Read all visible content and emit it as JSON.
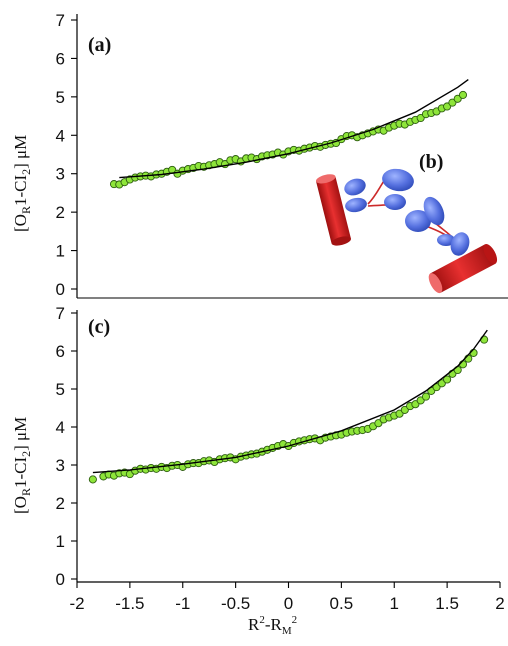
{
  "chart_data": [
    {
      "panel": "(a)",
      "type": "scatter",
      "ylabel": "[O_R1-CI_2] μM",
      "xlim": [
        -2,
        2
      ],
      "ylim": [
        0,
        7
      ],
      "yticks": [
        0,
        1,
        2,
        3,
        4,
        5,
        6,
        7
      ],
      "inset_label": "(b)",
      "series": [
        {
          "type": "scatter",
          "x": [
            -1.65,
            -1.6,
            -1.55,
            -1.5,
            -1.45,
            -1.4,
            -1.35,
            -1.3,
            -1.25,
            -1.2,
            -1.15,
            -1.1,
            -1.05,
            -1.0,
            -0.95,
            -0.9,
            -0.85,
            -0.8,
            -0.75,
            -0.7,
            -0.65,
            -0.6,
            -0.55,
            -0.5,
            -0.45,
            -0.4,
            -0.35,
            -0.3,
            -0.25,
            -0.2,
            -0.15,
            -0.1,
            -0.05,
            0.0,
            0.05,
            0.1,
            0.15,
            0.2,
            0.25,
            0.3,
            0.35,
            0.4,
            0.45,
            0.5,
            0.55,
            0.6,
            0.65,
            0.7,
            0.75,
            0.8,
            0.85,
            0.9,
            0.95,
            1.0,
            1.05,
            1.1,
            1.15,
            1.2,
            1.25,
            1.3,
            1.35,
            1.4,
            1.45,
            1.5,
            1.55,
            1.6,
            1.65
          ],
          "y": [
            2.73,
            2.72,
            2.78,
            2.85,
            2.9,
            2.93,
            2.95,
            2.93,
            2.98,
            3.0,
            3.05,
            3.1,
            3.0,
            3.08,
            3.12,
            3.15,
            3.2,
            3.18,
            3.22,
            3.25,
            3.3,
            3.25,
            3.35,
            3.38,
            3.32,
            3.4,
            3.42,
            3.38,
            3.45,
            3.48,
            3.5,
            3.55,
            3.5,
            3.58,
            3.62,
            3.6,
            3.65,
            3.68,
            3.72,
            3.7,
            3.75,
            3.78,
            3.8,
            3.9,
            3.98,
            4.0,
            3.95,
            4.0,
            4.05,
            4.1,
            4.15,
            4.12,
            4.2,
            4.25,
            4.3,
            4.28,
            4.35,
            4.4,
            4.45,
            4.55,
            4.58,
            4.62,
            4.7,
            4.75,
            4.85,
            4.95,
            5.05
          ]
        },
        {
          "type": "line",
          "x": [
            -1.6,
            -1.2,
            -0.8,
            -0.4,
            0.0,
            0.4,
            0.8,
            1.2,
            1.6,
            1.7
          ],
          "y": [
            2.9,
            2.98,
            3.12,
            3.3,
            3.52,
            3.8,
            4.15,
            4.6,
            5.25,
            5.45
          ]
        }
      ]
    },
    {
      "panel": "(c)",
      "type": "scatter",
      "ylabel": "[O_R1-CI_2] μM",
      "xlabel": "R²-R_M²",
      "xlim": [
        -2,
        2
      ],
      "ylim": [
        0,
        7
      ],
      "xticks": [
        -2,
        -1.5,
        -1,
        -0.5,
        0,
        0.5,
        1,
        1.5,
        2
      ],
      "yticks": [
        0,
        1,
        2,
        3,
        4,
        5,
        6,
        7
      ],
      "series": [
        {
          "type": "scatter",
          "x": [
            -1.85,
            -1.75,
            -1.7,
            -1.65,
            -1.6,
            -1.55,
            -1.5,
            -1.45,
            -1.4,
            -1.35,
            -1.3,
            -1.25,
            -1.2,
            -1.15,
            -1.1,
            -1.05,
            -1.0,
            -0.95,
            -0.9,
            -0.85,
            -0.8,
            -0.75,
            -0.7,
            -0.65,
            -0.6,
            -0.55,
            -0.5,
            -0.45,
            -0.4,
            -0.35,
            -0.3,
            -0.25,
            -0.2,
            -0.15,
            -0.1,
            -0.05,
            0.0,
            0.05,
            0.1,
            0.15,
            0.2,
            0.25,
            0.3,
            0.35,
            0.4,
            0.45,
            0.5,
            0.55,
            0.6,
            0.65,
            0.7,
            0.75,
            0.8,
            0.85,
            0.9,
            0.95,
            1.0,
            1.05,
            1.1,
            1.15,
            1.2,
            1.25,
            1.3,
            1.35,
            1.4,
            1.45,
            1.5,
            1.55,
            1.6,
            1.65,
            1.7,
            1.75,
            1.85
          ],
          "y": [
            2.62,
            2.7,
            2.75,
            2.72,
            2.78,
            2.8,
            2.76,
            2.85,
            2.9,
            2.88,
            2.92,
            2.9,
            2.95,
            2.92,
            2.98,
            3.0,
            2.95,
            3.02,
            3.05,
            3.05,
            3.1,
            3.12,
            3.08,
            3.15,
            3.18,
            3.2,
            3.15,
            3.22,
            3.25,
            3.28,
            3.3,
            3.35,
            3.4,
            3.45,
            3.5,
            3.55,
            3.5,
            3.58,
            3.62,
            3.65,
            3.68,
            3.7,
            3.65,
            3.72,
            3.75,
            3.78,
            3.8,
            3.85,
            3.88,
            3.9,
            3.92,
            3.95,
            4.02,
            4.1,
            4.2,
            4.25,
            4.3,
            4.35,
            4.45,
            4.55,
            4.6,
            4.7,
            4.8,
            4.95,
            5.05,
            5.15,
            5.25,
            5.4,
            5.5,
            5.65,
            5.8,
            5.95,
            6.3
          ]
        },
        {
          "type": "line",
          "x": [
            -1.85,
            -1.5,
            -1.0,
            -0.5,
            0.0,
            0.5,
            1.0,
            1.3,
            1.6,
            1.75,
            1.88
          ],
          "y": [
            2.8,
            2.87,
            3.02,
            3.2,
            3.5,
            3.9,
            4.45,
            4.95,
            5.6,
            6.05,
            6.55
          ]
        }
      ]
    }
  ],
  "labels": {
    "panel_a": "(a)",
    "panel_b": "(b)",
    "panel_c": "(c)",
    "ylabel_prefix": "[O",
    "ylabel_sub1": "R",
    "ylabel_mid": "1-CI",
    "ylabel_sub2": "2",
    "ylabel_suffix": "] μM",
    "xlabel_main": "R",
    "xlabel_sup1": "2",
    "xlabel_mid": "-R",
    "xlabel_sub": "M",
    "xlabel_sup2": "2"
  },
  "colors": {
    "marker_fill": "#8ee53a",
    "marker_edge": "#2d5d10",
    "fit_line": "#000000",
    "protein_blue": "#5a78e0",
    "dna_red": "#d42020",
    "linker_red": "#cc2a2a"
  }
}
